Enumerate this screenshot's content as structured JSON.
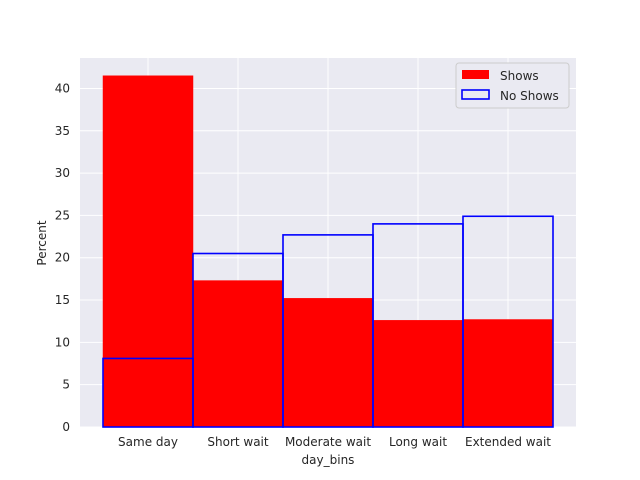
{
  "chart_data": {
    "type": "bar",
    "categories": [
      "Same day",
      "Short wait",
      "Moderate wait",
      "Long wait",
      "Extended wait"
    ],
    "series": [
      {
        "name": "Shows",
        "values": [
          41.5,
          17.3,
          15.2,
          12.6,
          12.7
        ],
        "style": "filled",
        "color": "#ff0000"
      },
      {
        "name": "No Shows",
        "values": [
          8.1,
          20.5,
          22.7,
          24.0,
          24.9
        ],
        "style": "outline",
        "color": "#0000ff"
      }
    ],
    "xlabel": "day_bins",
    "ylabel": "Percent",
    "ylim": [
      0,
      43.6
    ],
    "yticks": [
      0,
      5,
      10,
      15,
      20,
      25,
      30,
      35,
      40
    ],
    "grid": true,
    "background": "#eaeaf2",
    "legend_position": "top-right"
  }
}
